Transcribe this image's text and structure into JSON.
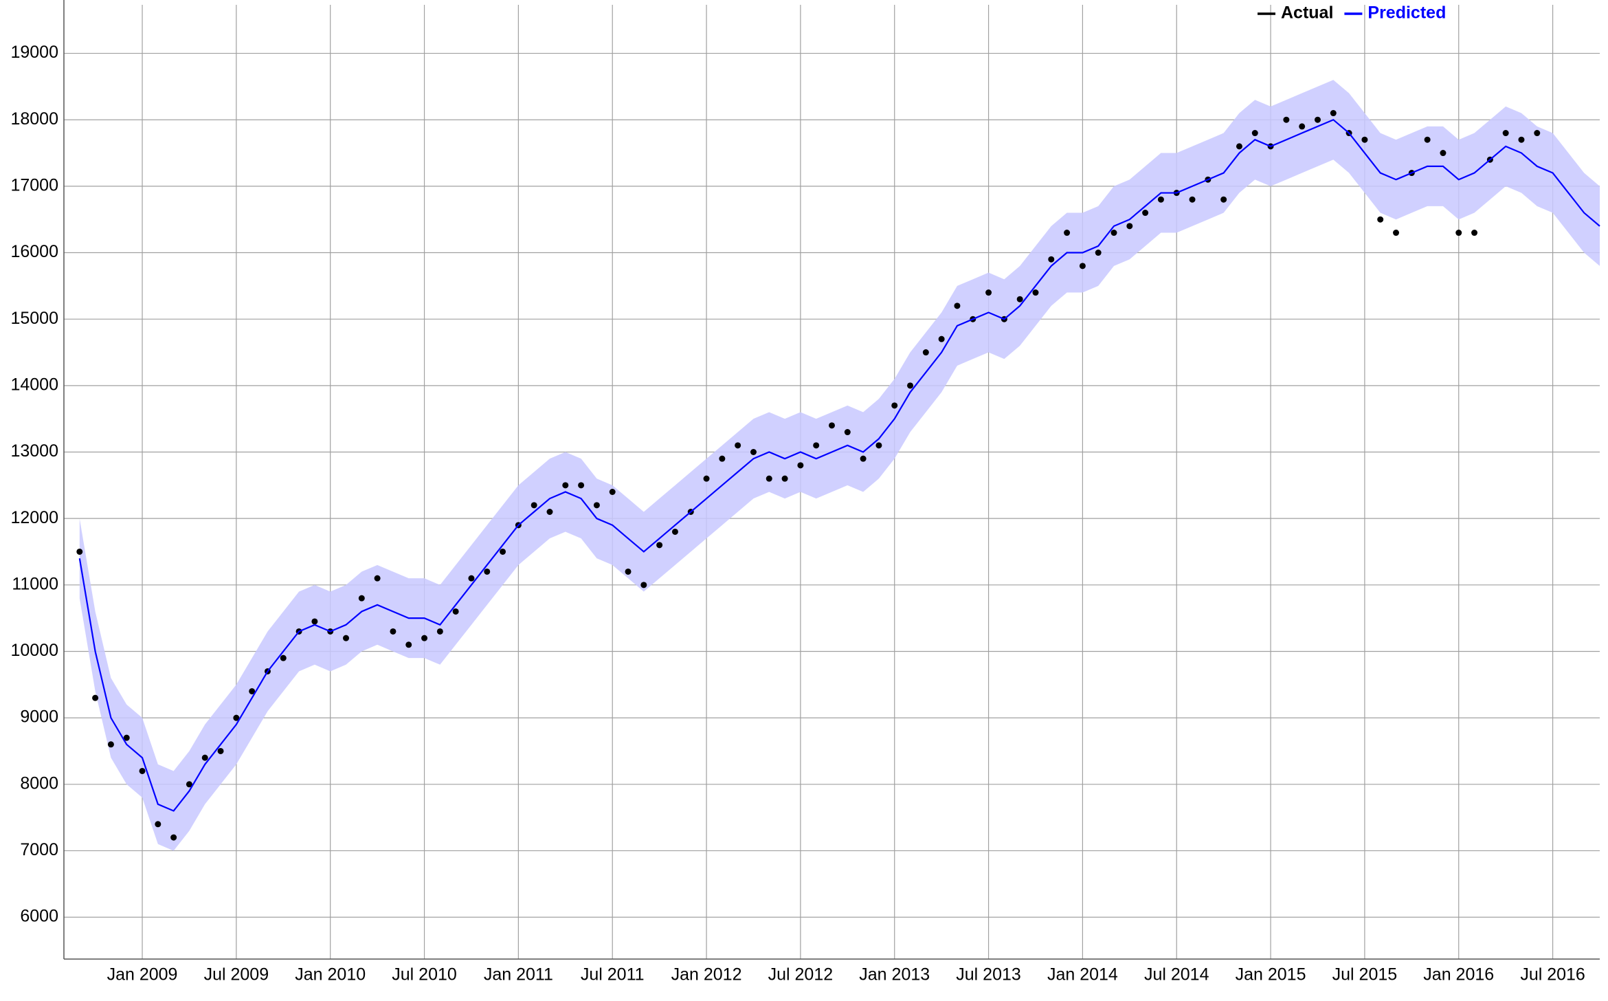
{
  "chart_data": {
    "type": "forecast",
    "x": [
      "2008-09",
      "2008-10",
      "2008-11",
      "2008-12",
      "2009-01",
      "2009-02",
      "2009-03",
      "2009-04",
      "2009-05",
      "2009-06",
      "2009-07",
      "2009-08",
      "2009-09",
      "2009-10",
      "2009-11",
      "2009-12",
      "2010-01",
      "2010-02",
      "2010-03",
      "2010-04",
      "2010-05",
      "2010-06",
      "2010-07",
      "2010-08",
      "2010-09",
      "2010-10",
      "2010-11",
      "2010-12",
      "2011-01",
      "2011-02",
      "2011-03",
      "2011-04",
      "2011-05",
      "2011-06",
      "2011-07",
      "2011-08",
      "2011-09",
      "2011-10",
      "2011-11",
      "2011-12",
      "2012-01",
      "2012-02",
      "2012-03",
      "2012-04",
      "2012-05",
      "2012-06",
      "2012-07",
      "2012-08",
      "2012-09",
      "2012-10",
      "2012-11",
      "2012-12",
      "2013-01",
      "2013-02",
      "2013-03",
      "2013-04",
      "2013-05",
      "2013-06",
      "2013-07",
      "2013-08",
      "2013-09",
      "2013-10",
      "2013-11",
      "2013-12",
      "2014-01",
      "2014-02",
      "2014-03",
      "2014-04",
      "2014-05",
      "2014-06",
      "2014-07",
      "2014-08",
      "2014-09",
      "2014-10",
      "2014-11",
      "2014-12",
      "2015-01",
      "2015-02",
      "2015-03",
      "2015-04",
      "2015-05",
      "2015-06",
      "2015-07",
      "2015-08",
      "2015-09",
      "2015-10",
      "2015-11",
      "2015-12",
      "2016-01",
      "2016-02",
      "2016-03",
      "2016-04",
      "2016-05",
      "2016-06",
      "2016-07",
      "2016-08",
      "2016-09",
      "2016-10"
    ],
    "series": [
      {
        "name": "Actual",
        "color": "#000000",
        "mode": "markers",
        "values": [
          11500,
          9300,
          8600,
          8700,
          8200,
          7400,
          7200,
          8000,
          8400,
          8500,
          9000,
          9400,
          9700,
          9900,
          10300,
          10450,
          10300,
          10200,
          10800,
          11100,
          10300,
          10100,
          10200,
          10300,
          10600,
          11100,
          11200,
          11500,
          11900,
          12200,
          12100,
          12500,
          12500,
          12200,
          12400,
          11200,
          11000,
          11600,
          11800,
          12100,
          12600,
          12900,
          13100,
          13000,
          12600,
          12600,
          12800,
          13100,
          13400,
          13300,
          12900,
          13100,
          13700,
          14000,
          14500,
          14700,
          15200,
          15000,
          15400,
          15000,
          15300,
          15400,
          15900,
          16300,
          15800,
          16000,
          16300,
          16400,
          16600,
          16800,
          16900,
          16800,
          17100,
          16800,
          17600,
          17800,
          17600,
          18000,
          17900,
          18000,
          18100,
          17800,
          17700,
          16500,
          16300,
          17200,
          17700,
          17500,
          16300,
          16300,
          17400,
          17800,
          17700,
          17800,
          null,
          null,
          null,
          null
        ]
      },
      {
        "name": "Predicted",
        "color": "#0000ff",
        "mode": "line",
        "values": [
          11400,
          10000,
          9000,
          8600,
          8400,
          7700,
          7600,
          7900,
          8300,
          8600,
          8900,
          9300,
          9700,
          10000,
          10300,
          10400,
          10300,
          10400,
          10600,
          10700,
          10600,
          10500,
          10500,
          10400,
          10700,
          11000,
          11300,
          11600,
          11900,
          12100,
          12300,
          12400,
          12300,
          12000,
          11900,
          11700,
          11500,
          11700,
          11900,
          12100,
          12300,
          12500,
          12700,
          12900,
          13000,
          12900,
          13000,
          12900,
          13000,
          13100,
          13000,
          13200,
          13500,
          13900,
          14200,
          14500,
          14900,
          15000,
          15100,
          15000,
          15200,
          15500,
          15800,
          16000,
          16000,
          16100,
          16400,
          16500,
          16700,
          16900,
          16900,
          17000,
          17100,
          17200,
          17500,
          17700,
          17600,
          17700,
          17800,
          17900,
          18000,
          17800,
          17500,
          17200,
          17100,
          17200,
          17300,
          17300,
          17100,
          17200,
          17400,
          17600,
          17500,
          17300,
          17200,
          16900,
          16600,
          16400
        ]
      }
    ],
    "band": {
      "color": "#c8c8ff",
      "lower": [
        10800,
        9400,
        8400,
        8000,
        7800,
        7100,
        7000,
        7300,
        7700,
        8000,
        8300,
        8700,
        9100,
        9400,
        9700,
        9800,
        9700,
        9800,
        10000,
        10100,
        10000,
        9900,
        9900,
        9800,
        10100,
        10400,
        10700,
        11000,
        11300,
        11500,
        11700,
        11800,
        11700,
        11400,
        11300,
        11100,
        10900,
        11100,
        11300,
        11500,
        11700,
        11900,
        12100,
        12300,
        12400,
        12300,
        12400,
        12300,
        12400,
        12500,
        12400,
        12600,
        12900,
        13300,
        13600,
        13900,
        14300,
        14400,
        14500,
        14400,
        14600,
        14900,
        15200,
        15400,
        15400,
        15500,
        15800,
        15900,
        16100,
        16300,
        16300,
        16400,
        16500,
        16600,
        16900,
        17100,
        17000,
        17100,
        17200,
        17300,
        17400,
        17200,
        16900,
        16600,
        16500,
        16600,
        16700,
        16700,
        16500,
        16600,
        16800,
        17000,
        16900,
        16700,
        16600,
        16300,
        16000,
        15800
      ],
      "upper": [
        12000,
        10600,
        9600,
        9200,
        9000,
        8300,
        8200,
        8500,
        8900,
        9200,
        9500,
        9900,
        10300,
        10600,
        10900,
        11000,
        10900,
        11000,
        11200,
        11300,
        11200,
        11100,
        11100,
        11000,
        11300,
        11600,
        11900,
        12200,
        12500,
        12700,
        12900,
        13000,
        12900,
        12600,
        12500,
        12300,
        12100,
        12300,
        12500,
        12700,
        12900,
        13100,
        13300,
        13500,
        13600,
        13500,
        13600,
        13500,
        13600,
        13700,
        13600,
        13800,
        14100,
        14500,
        14800,
        15100,
        15500,
        15600,
        15700,
        15600,
        15800,
        16100,
        16400,
        16600,
        16600,
        16700,
        17000,
        17100,
        17300,
        17500,
        17500,
        17600,
        17700,
        17800,
        18100,
        18300,
        18200,
        18300,
        18400,
        18500,
        18600,
        18400,
        18100,
        17800,
        17700,
        17800,
        17900,
        17900,
        17700,
        17800,
        18000,
        18200,
        18100,
        17900,
        17800,
        17500,
        17200,
        17000
      ]
    },
    "xlim": [
      "2008-08",
      "2016-10"
    ],
    "xticks": [
      {
        "value": "2009-01",
        "label": "Jan 2009"
      },
      {
        "value": "2009-07",
        "label": "Jul 2009"
      },
      {
        "value": "2010-01",
        "label": "Jan 2010"
      },
      {
        "value": "2010-07",
        "label": "Jul 2010"
      },
      {
        "value": "2011-01",
        "label": "Jan 2011"
      },
      {
        "value": "2011-07",
        "label": "Jul 2011"
      },
      {
        "value": "2012-01",
        "label": "Jan 2012"
      },
      {
        "value": "2012-07",
        "label": "Jul 2012"
      },
      {
        "value": "2013-01",
        "label": "Jan 2013"
      },
      {
        "value": "2013-07",
        "label": "Jul 2013"
      },
      {
        "value": "2014-01",
        "label": "Jan 2014"
      },
      {
        "value": "2014-07",
        "label": "Jul 2014"
      },
      {
        "value": "2015-01",
        "label": "Jan 2015"
      },
      {
        "value": "2015-07",
        "label": "Jul 2015"
      },
      {
        "value": "2016-01",
        "label": "Jan 2016"
      },
      {
        "value": "2016-07",
        "label": "Jul 2016"
      }
    ],
    "ylim": [
      5370,
      19730
    ],
    "yticks": [
      6000,
      7000,
      8000,
      9000,
      10000,
      11000,
      12000,
      13000,
      14000,
      15000,
      16000,
      17000,
      18000,
      19000
    ],
    "grid": true,
    "legend": "top-right"
  }
}
